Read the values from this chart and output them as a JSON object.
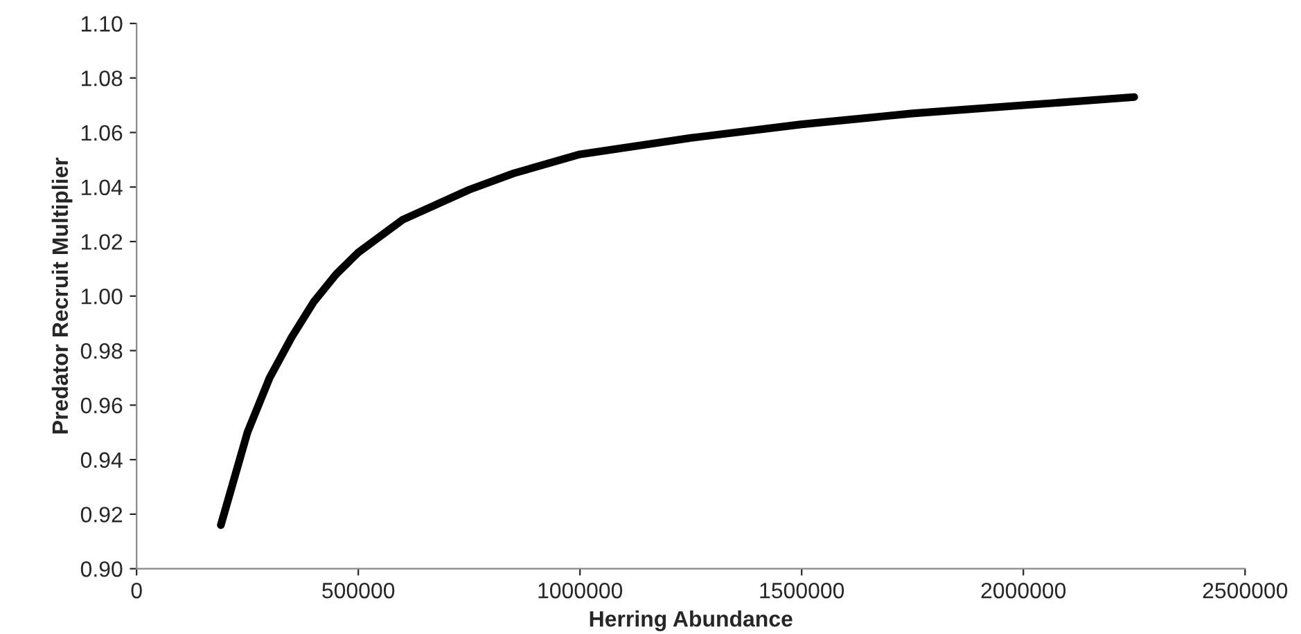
{
  "chart_data": {
    "type": "line",
    "xlabel": "Herring Abundance",
    "ylabel": "Predator Recruit Multiplier",
    "x": [
      190000,
      250000,
      300000,
      350000,
      400000,
      450000,
      500000,
      600000,
      750000,
      850000,
      1000000,
      1250000,
      1500000,
      1750000,
      2000000,
      2250000
    ],
    "series": [
      {
        "color": "#000000",
        "values": [
          0.916,
          0.95,
          0.97,
          0.985,
          0.998,
          1.008,
          1.016,
          1.028,
          1.039,
          1.045,
          1.052,
          1.058,
          1.063,
          1.067,
          1.07,
          1.073
        ]
      }
    ],
    "xlim": [
      0,
      2500000
    ],
    "xticks": [
      0,
      500000,
      1000000,
      1500000,
      2000000,
      2500000
    ],
    "ylim": [
      0.9,
      1.1
    ],
    "yticks": [
      {
        "value": 0.9,
        "label": "0.90"
      },
      {
        "value": 0.92,
        "label": "0.92"
      },
      {
        "value": 0.94,
        "label": "0.94"
      },
      {
        "value": 0.96,
        "label": "0.96"
      },
      {
        "value": 0.98,
        "label": "0.98"
      },
      {
        "value": 1.0,
        "label": "1.00"
      },
      {
        "value": 1.02,
        "label": "1.02"
      },
      {
        "value": 1.04,
        "label": "1.04"
      },
      {
        "value": 1.06,
        "label": "1.06"
      },
      {
        "value": 1.08,
        "label": "1.08"
      },
      {
        "value": 1.1,
        "label": "1.10"
      }
    ],
    "grid": false,
    "legend": false,
    "marker": "none",
    "line_style": "solid"
  }
}
